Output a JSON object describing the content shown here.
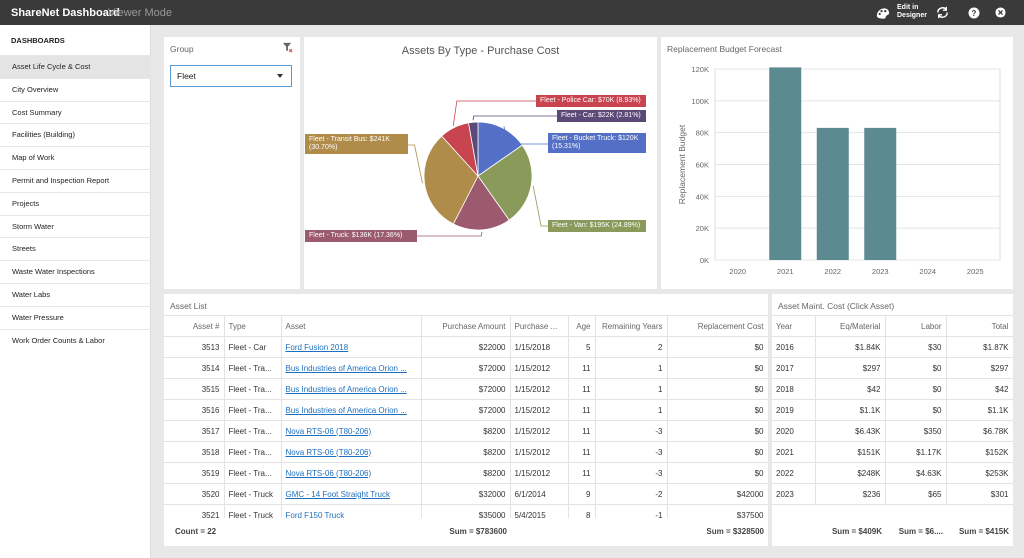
{
  "app": {
    "title": "ShareNet Dashboard",
    "mode": "Viewer Mode",
    "edit_label_1": "Edit in",
    "edit_label_2": "Designer"
  },
  "sidebar": {
    "header": "DASHBOARDS",
    "items": [
      "Asset Life Cycle & Cost",
      "City Overview",
      "Cost Summary",
      "Facilities (Building)",
      "Map of Work",
      "Permit and Inspection Report",
      "Projects",
      "Storm Water",
      "Streets",
      "Waste Water Inspections",
      "Water Labs",
      "Water Pressure",
      "Work Order Counts & Labor"
    ]
  },
  "group": {
    "title": "Group",
    "selected": "Fleet"
  },
  "pie": {
    "title": "Assets By Type - Purchase Cost",
    "slices": [
      {
        "label": "Fleet - Bucket Truck: $120K (15.31%)",
        "value": 15.31,
        "color": "#5470c6"
      },
      {
        "label": "Fleet - Van: $195K (24.89%)",
        "value": 24.89,
        "color": "#8a9a5b"
      },
      {
        "label": "Fleet - Truck: $136K (17.36%)",
        "value": 17.36,
        "color": "#9b5a6e"
      },
      {
        "label": "Fleet - Transit Bus: $241K (30.70%)",
        "value": 30.7,
        "color": "#b08c4a"
      },
      {
        "label": "Fleet - Police Car: $70K (8.93%)",
        "value": 8.93,
        "color": "#c8444e"
      },
      {
        "label": "Fleet - Car: $22K (2.81%)",
        "value": 2.81,
        "color": "#5b4a78"
      }
    ]
  },
  "chart_data": {
    "type": "bar",
    "title": "Replacement Budget Forecast",
    "ylabel": "Replacement Budget",
    "xlabel": "",
    "categories": [
      "2020",
      "2021",
      "2022",
      "2023",
      "2024",
      "2025"
    ],
    "values": [
      0,
      121000,
      83000,
      83000,
      0,
      0
    ],
    "ylim": [
      0,
      120000
    ],
    "yticks": [
      "0K",
      "20K",
      "40K",
      "60K",
      "80K",
      "100K",
      "120K"
    ],
    "color": "#5b8a91",
    "grid": true
  },
  "asset_list": {
    "title": "Asset List",
    "headers": [
      "Asset #",
      "Type",
      "Asset",
      "Purchase Amount",
      "Purchase ...",
      "Age",
      "Remaining Years",
      "Replacement Cost"
    ],
    "rows": [
      [
        "3513",
        "Fleet - Car",
        "Ford Fusion 2018",
        "$22000",
        "1/15/2018",
        "5",
        "2",
        "$0"
      ],
      [
        "3514",
        "Fleet - Tra...",
        "Bus Industries of America Orion ...",
        "$72000",
        "1/15/2012",
        "11",
        "1",
        "$0"
      ],
      [
        "3515",
        "Fleet - Tra...",
        "Bus Industries of America Orion ...",
        "$72000",
        "1/15/2012",
        "11",
        "1",
        "$0"
      ],
      [
        "3516",
        "Fleet - Tra...",
        "Bus Industries of America Orion ...",
        "$72000",
        "1/15/2012",
        "11",
        "1",
        "$0"
      ],
      [
        "3517",
        "Fleet - Tra...",
        "Nova RTS-06 (T80-206)",
        "$8200",
        "1/15/2012",
        "11",
        "-3",
        "$0"
      ],
      [
        "3518",
        "Fleet - Tra...",
        "Nova RTS-06 (T80-206)",
        "$8200",
        "1/15/2012",
        "11",
        "-3",
        "$0"
      ],
      [
        "3519",
        "Fleet - Tra...",
        "Nova RTS-06 (T80-206)",
        "$8200",
        "1/15/2012",
        "11",
        "-3",
        "$0"
      ],
      [
        "3520",
        "Fleet - Truck",
        "GMC - 14 Foot Straight Truck",
        "$32000",
        "6/1/2014",
        "9",
        "-2",
        "$42000"
      ],
      [
        "3521",
        "Fleet - Truck",
        "Ford F150 Truck",
        "$35000",
        "5/4/2015",
        "8",
        "-1",
        "$37500"
      ]
    ],
    "footer": {
      "count": "Count = 22",
      "purchase_sum": "Sum = $783600",
      "replacement_sum": "Sum = $328500"
    }
  },
  "maint": {
    "title": "Asset Maint. Cost (Click Asset)",
    "headers": [
      "Year",
      "Eq/Material",
      "Labor",
      "Total"
    ],
    "rows": [
      [
        "2016",
        "$1.84K",
        "$30",
        "$1.87K"
      ],
      [
        "2017",
        "$297",
        "$0",
        "$297"
      ],
      [
        "2018",
        "$42",
        "$0",
        "$42"
      ],
      [
        "2019",
        "$1.1K",
        "$0",
        "$1.1K"
      ],
      [
        "2020",
        "$6.43K",
        "$350",
        "$6.78K"
      ],
      [
        "2021",
        "$151K",
        "$1.17K",
        "$152K"
      ],
      [
        "2022",
        "$248K",
        "$4.63K",
        "$253K"
      ],
      [
        "2023",
        "$236",
        "$65",
        "$301"
      ]
    ],
    "footer": {
      "eq": "Sum = $409K",
      "labor": "Sum = $6....",
      "total": "Sum = $415K"
    }
  }
}
